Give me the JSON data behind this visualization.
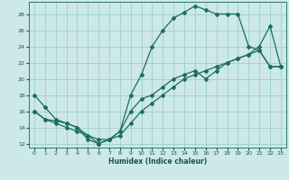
{
  "xlabel": "Humidex (Indice chaleur)",
  "xlim": [
    -0.5,
    23.5
  ],
  "ylim": [
    11.5,
    29.5
  ],
  "xticks": [
    0,
    1,
    2,
    3,
    4,
    5,
    6,
    7,
    8,
    9,
    10,
    11,
    12,
    13,
    14,
    15,
    16,
    17,
    18,
    19,
    20,
    21,
    22,
    23
  ],
  "yticks": [
    12,
    14,
    16,
    18,
    20,
    22,
    24,
    26,
    28
  ],
  "background_color": "#cde8e8",
  "grid_color": "#9ecece",
  "line_color": "#1a6e60",
  "line1_x": [
    0,
    1,
    2,
    3,
    4,
    5,
    6,
    7,
    8,
    9,
    10,
    11,
    12,
    13,
    14,
    15,
    16,
    17,
    18,
    19,
    20,
    21,
    22,
    23
  ],
  "line1_y": [
    18,
    16.5,
    15,
    14.5,
    14,
    12.5,
    12,
    12.5,
    13.5,
    18,
    20.5,
    24,
    26,
    27.5,
    28.2,
    29,
    28.5,
    28,
    28,
    28,
    24,
    23.5,
    21.5,
    21.5
  ],
  "line2_x": [
    0,
    1,
    2,
    3,
    4,
    5,
    6,
    7,
    8,
    9,
    10,
    11,
    12,
    13,
    14,
    15,
    16,
    17,
    18,
    19,
    20,
    21,
    22,
    23
  ],
  "line2_y": [
    16,
    15,
    14.8,
    14.5,
    14,
    13,
    12,
    12.5,
    13.5,
    16,
    17.5,
    18,
    19,
    20,
    20.5,
    21,
    20,
    21,
    22,
    22.5,
    23,
    24,
    26.5,
    21.5
  ],
  "line3_x": [
    0,
    1,
    2,
    3,
    4,
    5,
    6,
    7,
    8,
    9,
    10,
    11,
    12,
    13,
    14,
    15,
    16,
    17,
    18,
    19,
    20,
    21,
    22,
    23
  ],
  "line3_y": [
    16,
    15,
    14.5,
    14,
    13.5,
    13,
    12.5,
    12.5,
    13,
    14.5,
    16,
    17,
    18,
    19,
    20,
    20.5,
    21,
    21.5,
    22,
    22.5,
    23,
    23.5,
    21.5,
    21.5
  ]
}
